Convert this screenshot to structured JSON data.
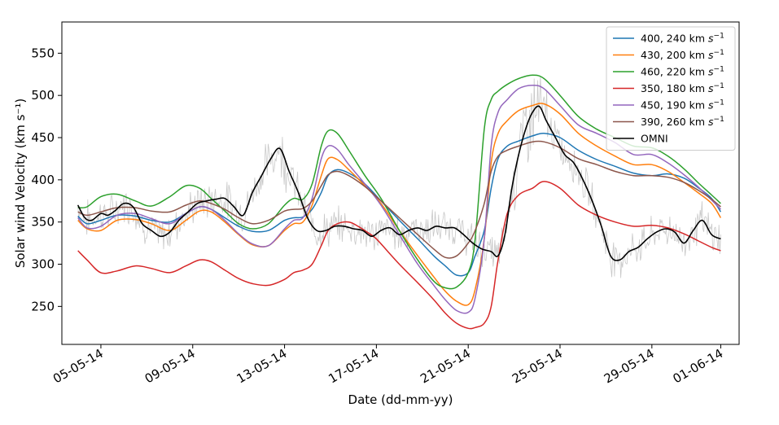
{
  "chart_data": {
    "type": "line",
    "title": "",
    "xlabel": "Date (dd-mm-yy)",
    "ylabel": "Solar wind Velocity (km s⁻¹)",
    "xlim": [
      3.3,
      32.8
    ],
    "ylim": [
      205,
      587
    ],
    "xtick_values": [
      5,
      9,
      13,
      17,
      21,
      25,
      29,
      32
    ],
    "xtick_labels": [
      "05-05-14",
      "09-05-14",
      "13-05-14",
      "17-05-14",
      "21-05-14",
      "25-05-14",
      "29-05-14",
      "01-06-14"
    ],
    "ytick_values": [
      250,
      300,
      350,
      400,
      450,
      500,
      550
    ],
    "ytick_labels": [
      "250",
      "300",
      "350",
      "400",
      "450",
      "500",
      "550"
    ],
    "legend_position": "top-right",
    "raw_data_color": "#c8c8c8",
    "x_units": "day of May 2014 (1 = 01-05-14)",
    "series": [
      {
        "name": "400, 240 km s⁻¹",
        "name_main": "400, 240 km ",
        "name_unit": "s",
        "name_exp": "−1",
        "color": "#1f77b4",
        "x": [
          4.0,
          4.4,
          5.0,
          5.7,
          6.5,
          7.2,
          8.0,
          8.7,
          9.3,
          9.8,
          10.4,
          11.0,
          11.6,
          12.3,
          13.0,
          13.4,
          13.8,
          14.2,
          14.6,
          14.9,
          15.3,
          15.8,
          16.5,
          17.2,
          18.0,
          18.8,
          19.5,
          20.0,
          20.5,
          21.0,
          21.3,
          21.7,
          22.0,
          22.3,
          22.7,
          23.2,
          23.8,
          24.3,
          25.0,
          25.8,
          26.6,
          27.4,
          28.2,
          29.0,
          29.7,
          30.4,
          31.0,
          31.6,
          32.0
        ],
        "y": [
          357,
          348,
          352,
          358,
          357,
          352,
          350,
          360,
          368,
          365,
          355,
          345,
          339,
          340,
          352,
          355,
          356,
          365,
          385,
          405,
          412,
          408,
          395,
          375,
          352,
          330,
          310,
          298,
          287,
          290,
          310,
          340,
          390,
          425,
          440,
          446,
          452,
          455,
          450,
          435,
          424,
          416,
          408,
          405,
          407,
          402,
          391,
          378,
          362
        ]
      },
      {
        "name": "430, 200 km s⁻¹",
        "name_main": "430, 200 km ",
        "name_unit": "s",
        "name_exp": "−1",
        "color": "#ff7f0e",
        "x": [
          4.0,
          4.4,
          5.0,
          5.7,
          6.5,
          7.2,
          8.0,
          8.7,
          9.3,
          9.8,
          10.4,
          11.0,
          11.6,
          12.3,
          13.0,
          13.4,
          13.8,
          14.2,
          14.6,
          14.9,
          15.3,
          15.8,
          16.5,
          17.2,
          18.0,
          18.8,
          19.5,
          20.0,
          20.5,
          21.0,
          21.3,
          21.7,
          22.0,
          22.3,
          22.7,
          23.2,
          23.8,
          24.3,
          25.0,
          25.8,
          26.6,
          27.4,
          28.2,
          29.0,
          29.7,
          30.4,
          31.0,
          31.6,
          32.0
        ],
        "y": [
          352,
          342,
          340,
          352,
          353,
          348,
          340,
          352,
          363,
          362,
          350,
          335,
          323,
          322,
          340,
          348,
          350,
          370,
          405,
          425,
          424,
          412,
          393,
          372,
          340,
          310,
          285,
          268,
          256,
          252,
          270,
          330,
          420,
          455,
          470,
          482,
          488,
          490,
          478,
          455,
          440,
          428,
          418,
          418,
          410,
          397,
          385,
          372,
          355
        ]
      },
      {
        "name": "460, 220 km s⁻¹",
        "name_main": "460, 220 km ",
        "name_unit": "s",
        "name_exp": "−1",
        "color": "#2ca02c",
        "x": [
          4.0,
          4.4,
          5.0,
          5.7,
          6.5,
          7.2,
          8.0,
          8.7,
          9.3,
          9.8,
          10.4,
          11.0,
          11.6,
          12.3,
          13.0,
          13.4,
          13.8,
          14.2,
          14.6,
          14.9,
          15.3,
          15.8,
          16.5,
          17.2,
          18.0,
          18.8,
          19.5,
          20.0,
          20.5,
          21.0,
          21.3,
          21.7,
          22.0,
          22.3,
          22.7,
          23.2,
          23.8,
          24.3,
          25.0,
          25.8,
          26.6,
          27.4,
          28.2,
          29.0,
          29.7,
          30.4,
          31.0,
          31.6,
          32.0
        ],
        "y": [
          367,
          368,
          380,
          383,
          375,
          369,
          380,
          393,
          390,
          378,
          363,
          348,
          342,
          348,
          370,
          378,
          377,
          395,
          440,
          458,
          455,
          435,
          405,
          378,
          340,
          305,
          280,
          272,
          273,
          290,
          330,
          460,
          495,
          505,
          513,
          520,
          524,
          520,
          500,
          475,
          460,
          450,
          440,
          438,
          428,
          413,
          397,
          382,
          372
        ]
      },
      {
        "name": "350, 180 km s⁻¹",
        "name_main": "350, 180 km ",
        "name_unit": "s",
        "name_exp": "−1",
        "color": "#d62728",
        "x": [
          4.0,
          4.4,
          5.0,
          5.7,
          6.5,
          7.2,
          8.0,
          8.7,
          9.3,
          9.8,
          10.4,
          11.0,
          11.6,
          12.3,
          13.0,
          13.4,
          13.8,
          14.2,
          14.6,
          14.9,
          15.3,
          15.8,
          16.2,
          16.6,
          17.0,
          17.5,
          18.0,
          18.8,
          19.5,
          20.0,
          20.5,
          21.0,
          21.3,
          21.7,
          22.0,
          22.3,
          22.7,
          23.2,
          23.8,
          24.3,
          25.0,
          25.8,
          26.6,
          27.4,
          28.2,
          29.0,
          29.7,
          30.4,
          31.0,
          31.6,
          32.0
        ],
        "y": [
          316,
          305,
          290,
          292,
          298,
          295,
          290,
          298,
          305,
          303,
          293,
          283,
          277,
          275,
          282,
          290,
          293,
          300,
          322,
          340,
          348,
          350,
          345,
          338,
          330,
          315,
          300,
          278,
          258,
          242,
          230,
          224,
          225,
          230,
          250,
          305,
          360,
          382,
          390,
          398,
          390,
          370,
          358,
          350,
          345,
          346,
          343,
          336,
          328,
          320,
          316
        ]
      },
      {
        "name": "450, 190 km s⁻¹",
        "name_main": "450, 190 km ",
        "name_unit": "s",
        "name_exp": "−1",
        "color": "#9467bd",
        "x": [
          4.0,
          4.4,
          5.0,
          5.7,
          6.5,
          7.2,
          8.0,
          8.7,
          9.3,
          9.8,
          10.4,
          11.0,
          11.6,
          12.3,
          13.0,
          13.4,
          13.8,
          14.2,
          14.6,
          14.9,
          15.3,
          15.8,
          16.5,
          17.2,
          18.0,
          18.8,
          19.5,
          20.0,
          20.5,
          21.0,
          21.3,
          21.7,
          22.0,
          22.3,
          22.7,
          23.2,
          23.8,
          24.3,
          25.0,
          25.8,
          26.6,
          27.4,
          28.2,
          29.0,
          29.7,
          30.4,
          31.0,
          31.6,
          32.0
        ],
        "y": [
          355,
          343,
          345,
          358,
          360,
          354,
          348,
          360,
          368,
          365,
          352,
          336,
          324,
          322,
          342,
          352,
          355,
          378,
          425,
          440,
          436,
          418,
          395,
          370,
          335,
          300,
          275,
          258,
          245,
          243,
          260,
          330,
          440,
          480,
          495,
          508,
          512,
          508,
          488,
          465,
          455,
          444,
          430,
          430,
          420,
          406,
          392,
          376,
          365
        ]
      },
      {
        "name": "390, 260 km s⁻¹",
        "name_main": "390, 260 km ",
        "name_unit": "s",
        "name_exp": "−1",
        "color": "#8c564b",
        "x": [
          4.0,
          4.4,
          5.0,
          5.7,
          6.5,
          7.2,
          8.0,
          8.7,
          9.3,
          9.8,
          10.4,
          11.0,
          11.6,
          12.3,
          13.0,
          13.4,
          13.8,
          14.2,
          14.6,
          14.9,
          15.3,
          15.8,
          16.5,
          17.2,
          18.0,
          18.8,
          19.5,
          20.0,
          20.5,
          21.0,
          21.3,
          21.7,
          22.0,
          22.3,
          22.7,
          23.2,
          23.8,
          24.3,
          25.0,
          25.8,
          26.6,
          27.4,
          28.2,
          29.0,
          29.7,
          30.4,
          31.0,
          31.6,
          32.0
        ],
        "y": [
          362,
          358,
          362,
          367,
          367,
          363,
          362,
          370,
          375,
          372,
          365,
          355,
          348,
          352,
          363,
          365,
          366,
          375,
          393,
          406,
          410,
          405,
          392,
          375,
          355,
          335,
          318,
          308,
          310,
          325,
          340,
          372,
          410,
          428,
          435,
          440,
          445,
          445,
          438,
          425,
          418,
          410,
          405,
          405,
          403,
          397,
          388,
          377,
          368
        ]
      },
      {
        "name": "OMNI",
        "name_main": "OMNI",
        "name_unit": "",
        "name_exp": "",
        "color": "#000000",
        "x": [
          4.0,
          4.3,
          4.6,
          5.0,
          5.3,
          5.6,
          6.0,
          6.4,
          6.8,
          7.2,
          7.6,
          8.0,
          8.4,
          8.8,
          9.2,
          9.6,
          10.0,
          10.4,
          10.8,
          11.2,
          11.6,
          12.0,
          12.4,
          12.8,
          13.2,
          13.6,
          14.0,
          14.4,
          14.8,
          15.2,
          15.6,
          16.0,
          16.4,
          16.8,
          17.2,
          17.6,
          18.0,
          18.4,
          18.8,
          19.2,
          19.6,
          20.0,
          20.4,
          20.8,
          21.2,
          21.6,
          22.0,
          22.3,
          22.6,
          22.9,
          23.2,
          23.5,
          23.8,
          24.1,
          24.4,
          24.8,
          25.2,
          25.6,
          26.0,
          26.4,
          26.8,
          27.2,
          27.6,
          28.0,
          28.4,
          28.8,
          29.2,
          29.6,
          30.0,
          30.4,
          30.8,
          31.2,
          31.6,
          32.0
        ],
        "y": [
          370,
          355,
          352,
          360,
          358,
          363,
          372,
          368,
          348,
          340,
          333,
          338,
          352,
          362,
          372,
          375,
          377,
          378,
          368,
          358,
          385,
          405,
          425,
          437,
          410,
          385,
          355,
          340,
          340,
          345,
          345,
          342,
          340,
          333,
          340,
          343,
          335,
          340,
          343,
          340,
          345,
          343,
          343,
          335,
          325,
          318,
          315,
          310,
          335,
          390,
          430,
          460,
          480,
          487,
          470,
          450,
          430,
          420,
          400,
          375,
          345,
          310,
          305,
          315,
          320,
          330,
          338,
          342,
          338,
          325,
          340,
          352,
          335,
          330
        ]
      }
    ]
  }
}
